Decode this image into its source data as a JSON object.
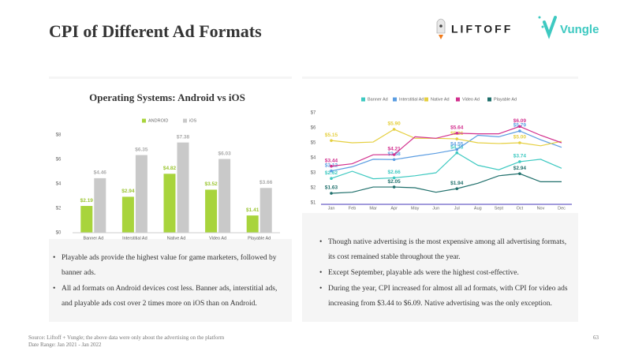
{
  "title": "CPI of Different Ad Formats",
  "logos": [
    "LIFTOFF",
    "Vungle"
  ],
  "chart_data": [
    {
      "type": "bar",
      "title": "Operating Systems: Android vs iOS",
      "categories": [
        "Banner Ad",
        "Interstitial Ad",
        "Native Ad",
        "Video Ad",
        "Playable Ad"
      ],
      "series": [
        {
          "name": "ANDROID",
          "color": "#a8d43c",
          "values": [
            2.19,
            2.94,
            4.82,
            3.52,
            1.41
          ],
          "value_labels": [
            "$2.19",
            "$2.94",
            "$4.82",
            "$3.52",
            "$1.41"
          ]
        },
        {
          "name": "iOS",
          "color": "#c9c9c9",
          "values": [
            4.46,
            6.35,
            7.38,
            6.03,
            3.66
          ],
          "value_labels": [
            "$4.46",
            "$6.35",
            "$7.38",
            "$6.03",
            "$3.66"
          ]
        }
      ],
      "ylim": [
        0,
        8
      ],
      "yticks": [
        {
          "value": 0,
          "label": "$0"
        },
        {
          "value": 2,
          "label": "$2"
        },
        {
          "value": 4,
          "label": "$4"
        },
        {
          "value": 6,
          "label": "$6"
        },
        {
          "value": 8,
          "label": "$8"
        }
      ],
      "grid": false
    },
    {
      "type": "line",
      "categories": [
        "Jan",
        "Feb",
        "Mar",
        "Apr",
        "May",
        "Jun",
        "Jul",
        "Aug",
        "Sept",
        "Oct",
        "Nov",
        "Dec"
      ],
      "series": [
        {
          "name": "Banner Ad",
          "color": "#3ec9c1",
          "values": [
            2.62,
            3.1,
            2.6,
            2.66,
            2.8,
            3.0,
            4.33,
            3.5,
            3.2,
            3.74,
            3.9,
            3.3
          ],
          "value_labels": [
            "$2.62",
            null,
            null,
            "$2.66",
            null,
            null,
            "$4.33",
            null,
            null,
            "$3.74",
            null,
            null
          ]
        },
        {
          "name": "Interstitial Ad",
          "color": "#5b9de2",
          "values": [
            3.12,
            3.4,
            3.9,
            3.88,
            4.1,
            4.3,
            4.55,
            5.5,
            5.4,
            5.79,
            5.2,
            4.7
          ],
          "value_labels": [
            "$3.12",
            null,
            null,
            "$3.88",
            null,
            null,
            "$4.55",
            null,
            null,
            "$5.79",
            null,
            null
          ]
        },
        {
          "name": "Native Ad",
          "color": "#e5cf3f",
          "values": [
            5.15,
            5.0,
            5.05,
            5.9,
            5.3,
            5.3,
            5.26,
            5.0,
            4.95,
            5.0,
            4.8,
            5.1
          ],
          "value_labels": [
            "$5.15",
            null,
            null,
            "$5.90",
            null,
            null,
            "$5.26",
            null,
            null,
            "$5.00",
            null,
            null
          ]
        },
        {
          "name": "Video Ad",
          "color": "#d2308e",
          "values": [
            3.44,
            3.6,
            4.2,
            4.21,
            5.4,
            5.3,
            5.64,
            5.6,
            5.6,
            6.09,
            5.5,
            5.0
          ],
          "value_labels": [
            "$3.44",
            null,
            null,
            "$4.21",
            null,
            null,
            "$5.64",
            null,
            null,
            "$6.09",
            null,
            null
          ]
        },
        {
          "name": "Playable Ad",
          "color": "#1f6f6b",
          "values": [
            1.63,
            1.7,
            2.05,
            2.05,
            2.0,
            1.7,
            1.94,
            2.3,
            2.8,
            2.94,
            2.4,
            2.4
          ],
          "value_labels": [
            "$1.63",
            null,
            null,
            "$2.05",
            null,
            null,
            "$1.94",
            null,
            null,
            "$2.94",
            null,
            null
          ]
        }
      ],
      "ylim": [
        1,
        7
      ],
      "yticks": [
        {
          "value": 1,
          "label": "$1"
        },
        {
          "value": 2,
          "label": "$2"
        },
        {
          "value": 3,
          "label": "$3"
        },
        {
          "value": 4,
          "label": "$4"
        },
        {
          "value": 5,
          "label": "$5"
        },
        {
          "value": 6,
          "label": "$6"
        },
        {
          "value": 7,
          "label": "$7"
        }
      ],
      "grid": false
    }
  ],
  "left_notes": [
    "Playable ads provide the highest value for game marketers, followed by banner ads.",
    "All ad formats on Android devices cost less. Banner ads, interstitial ads, and playable ads cost over 2 times more on iOS than on Android."
  ],
  "right_notes": [
    "Though native advertising is the most expensive among all advertising formats, its cost remained stable throughout the year.",
    "Except September, playable ads were the highest cost-effective.",
    "During the year, CPI increased for almost all ad formats, with CPI for video ads increasing from $3.44 to $6.09. Native advertising was the only exception."
  ],
  "source": [
    "Source: Liftoff + Vungle; the above data were only about the advertising on the platform",
    "Date Range: Jan 2021 - Jan 2022"
  ],
  "page_number": "63"
}
